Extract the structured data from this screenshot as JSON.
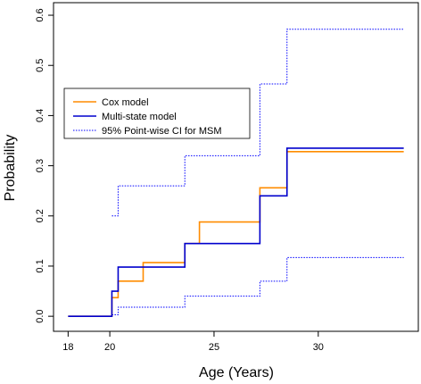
{
  "chart_data": {
    "type": "line",
    "title": "",
    "xlabel": "Age (Years)",
    "ylabel": "Probability",
    "xlim": [
      17.3,
      34.8
    ],
    "ylim": [
      -0.03,
      0.625
    ],
    "xticks": [
      18,
      20,
      25,
      30
    ],
    "yticks": [
      0.0,
      0.1,
      0.2,
      0.3,
      0.4,
      0.5,
      0.6
    ],
    "ytick_labels": [
      "0.0",
      "0.1",
      "0.2",
      "0.3",
      "0.4",
      "0.5",
      "0.6"
    ],
    "grid": false,
    "legend_position": "left",
    "series": [
      {
        "name": "Cox model",
        "color": "#ff8c00",
        "style": "solid",
        "points": [
          [
            18.0,
            0.0
          ],
          [
            20.1,
            0.0
          ],
          [
            20.1,
            0.037
          ],
          [
            20.4,
            0.037
          ],
          [
            20.4,
            0.07
          ],
          [
            21.6,
            0.07
          ],
          [
            21.6,
            0.107
          ],
          [
            23.6,
            0.107
          ],
          [
            23.6,
            0.145
          ],
          [
            24.3,
            0.145
          ],
          [
            24.3,
            0.188
          ],
          [
            27.2,
            0.188
          ],
          [
            27.2,
            0.256
          ],
          [
            28.5,
            0.256
          ],
          [
            28.5,
            0.328
          ],
          [
            34.1,
            0.328
          ]
        ]
      },
      {
        "name": "Multi-state model",
        "color": "#0000cd",
        "style": "solid",
        "points": [
          [
            18.0,
            0.0
          ],
          [
            20.1,
            0.0
          ],
          [
            20.1,
            0.05
          ],
          [
            20.4,
            0.05
          ],
          [
            20.4,
            0.098
          ],
          [
            23.6,
            0.098
          ],
          [
            23.6,
            0.145
          ],
          [
            27.2,
            0.145
          ],
          [
            27.2,
            0.24
          ],
          [
            28.5,
            0.24
          ],
          [
            28.5,
            0.335
          ],
          [
            34.1,
            0.335
          ]
        ]
      },
      {
        "name": "95% Point-wise CI for MSM",
        "color": "#0000ff",
        "style": "dotted",
        "lines": [
          [
            [
              20.1,
              0.2
            ],
            [
              20.4,
              0.2
            ],
            [
              20.4,
              0.26
            ],
            [
              23.6,
              0.26
            ],
            [
              23.6,
              0.32
            ],
            [
              27.2,
              0.32
            ],
            [
              27.2,
              0.463
            ],
            [
              28.5,
              0.463
            ],
            [
              28.5,
              0.572
            ],
            [
              34.1,
              0.572
            ]
          ],
          [
            [
              20.1,
              0.003
            ],
            [
              20.4,
              0.003
            ],
            [
              20.4,
              0.018
            ],
            [
              23.6,
              0.018
            ],
            [
              23.6,
              0.04
            ],
            [
              27.2,
              0.04
            ],
            [
              27.2,
              0.07
            ],
            [
              28.5,
              0.07
            ],
            [
              28.5,
              0.117
            ],
            [
              34.1,
              0.117
            ]
          ]
        ]
      }
    ]
  }
}
